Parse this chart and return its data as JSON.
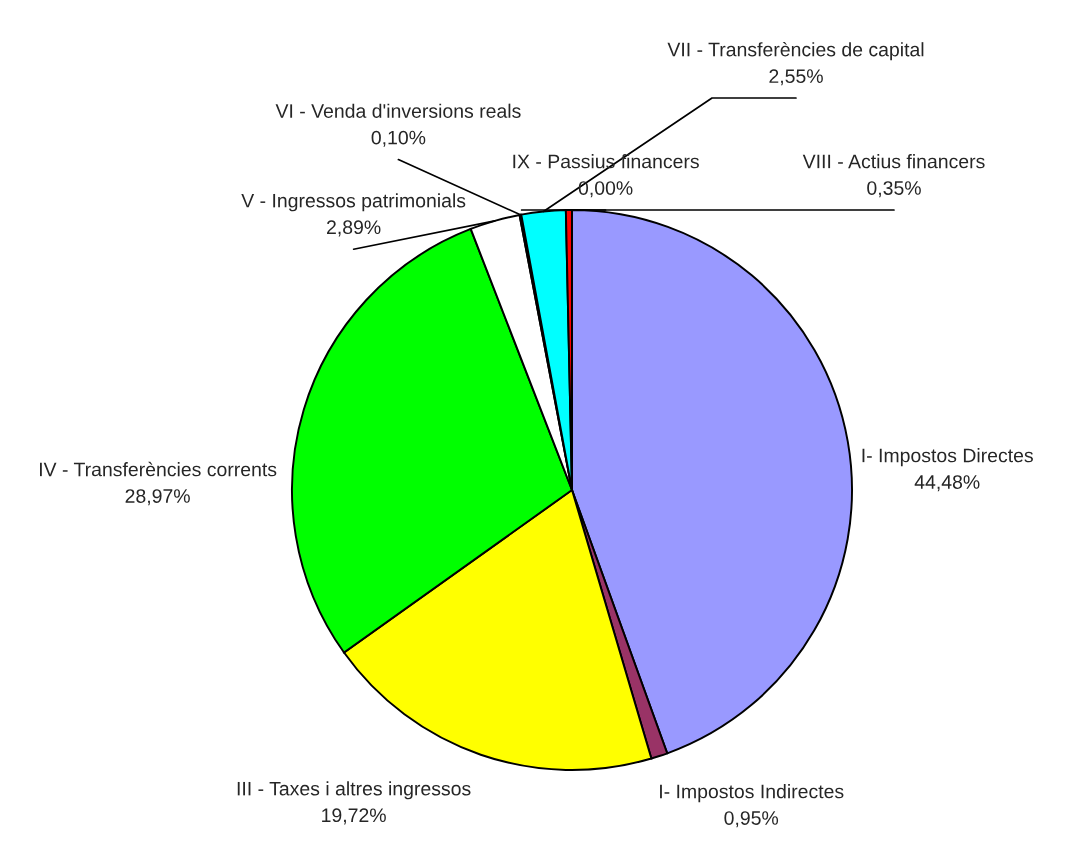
{
  "chart_data": {
    "type": "pie",
    "categories": [
      "I- Impostos Directes",
      "I- Impostos Indirectes",
      "III - Taxes i altres ingressos",
      "IV - Transferències corrents",
      "V - Ingressos patrimonials",
      "VI - Venda d'inversions reals",
      "VII - Transferències de capital",
      "VIII - Actius financers",
      "IX - Passius financers"
    ],
    "values": [
      44.48,
      0.95,
      19.72,
      28.97,
      2.89,
      0.1,
      2.55,
      0.35,
      0.0
    ],
    "value_labels": [
      "44,48%",
      "0,95%",
      "19,72%",
      "28,97%",
      "2,89%",
      "0,10%",
      "2,55%",
      "0,35%",
      "0,00%"
    ],
    "colors": [
      "#9999ff",
      "#993366",
      "#ffff00",
      "#00ff00",
      "#ffffff",
      "#ff8080",
      "#00ffff",
      "#ff0000",
      "#000080"
    ]
  }
}
